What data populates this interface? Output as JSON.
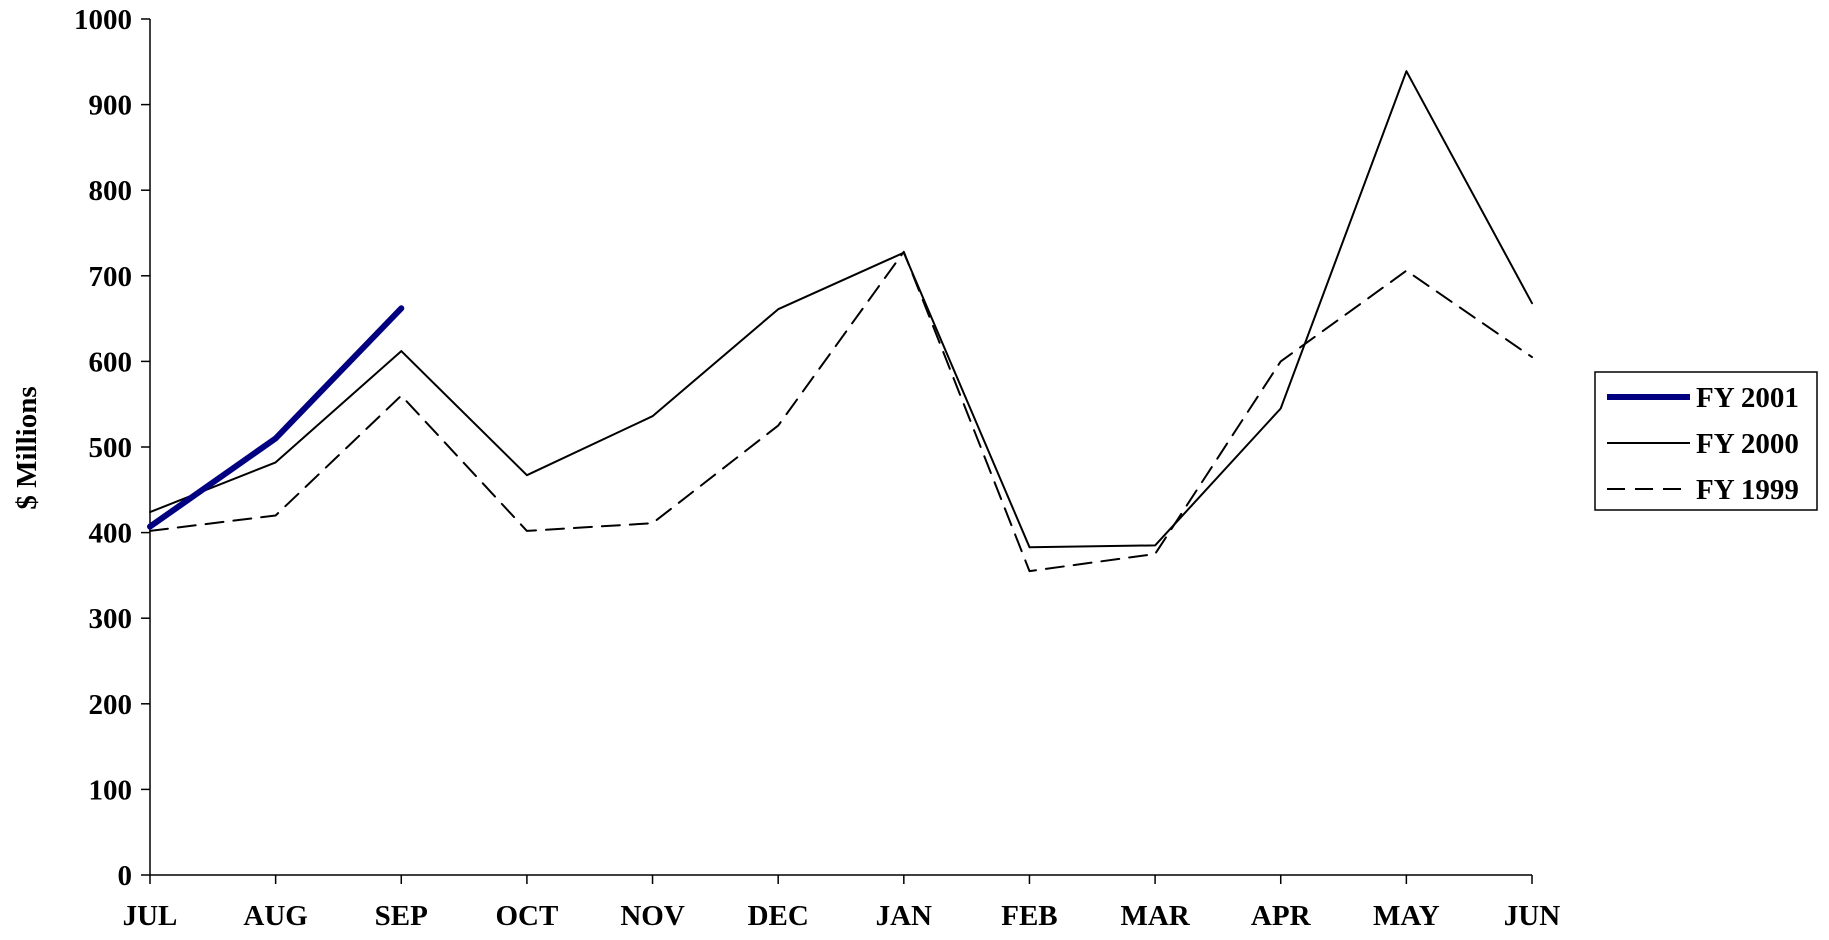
{
  "chart_data": {
    "type": "line",
    "title": "",
    "xlabel": "",
    "ylabel": "$ Millions",
    "categories": [
      "JUL",
      "AUG",
      "SEP",
      "OCT",
      "NOV",
      "DEC",
      "JAN",
      "FEB",
      "MAR",
      "APR",
      "MAY",
      "JUN"
    ],
    "ylim": [
      0,
      1000
    ],
    "yticks": [
      0,
      100,
      200,
      300,
      400,
      500,
      600,
      700,
      800,
      900,
      1000
    ],
    "grid": false,
    "legend_position": "right",
    "series": [
      {
        "name": "FY 2001",
        "style": "thick",
        "color": "#000080",
        "values": [
          407,
          510,
          662,
          null,
          null,
          null,
          null,
          null,
          null,
          null,
          null,
          null
        ]
      },
      {
        "name": "FY 2000",
        "style": "solid",
        "color": "#000000",
        "values": [
          424,
          482,
          612,
          467,
          536,
          661,
          727,
          383,
          385,
          545,
          939,
          668
        ]
      },
      {
        "name": "FY 1999",
        "style": "dashed",
        "color": "#000000",
        "values": [
          402,
          420,
          560,
          402,
          411,
          525,
          728,
          355,
          375,
          600,
          706,
          605
        ]
      }
    ]
  }
}
